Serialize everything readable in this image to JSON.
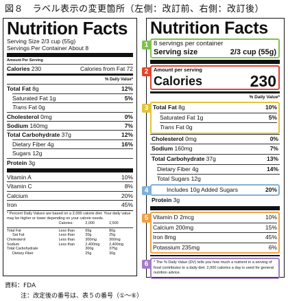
{
  "title": "図８　ラベル表示の変更箇所（左側：改訂前、右側：改訂後）",
  "old_label": {
    "heading": "Nutrition Facts",
    "serving_size": "Serving Size 2/3 cup (55g)",
    "servings": "Servings Per Container About 8",
    "amount_per": "Amount Per Serving",
    "calories_label": "Calories",
    "calories_value": "230",
    "calories_fat": "Calories from Fat 72",
    "dv_header": "% Daily Value*",
    "nutrients": [
      {
        "label": "Total Fat",
        "amount": "8g",
        "dv": "12%",
        "bold": true
      },
      {
        "label": "Saturated Fat",
        "amount": "1g",
        "dv": "5%"
      },
      {
        "label": "Trans",
        "amount": "Fat 0g",
        "dv": ""
      },
      {
        "label": "Cholesterol",
        "amount": "0mg",
        "dv": "0%",
        "bold": true
      },
      {
        "label": "Sodium",
        "amount": "160mg",
        "dv": "7%",
        "bold": true
      },
      {
        "label": "Total Carbohydrate",
        "amount": "37g",
        "dv": "12%",
        "bold": true
      },
      {
        "label": "Dietary Fiber",
        "amount": "4g",
        "dv": "16%"
      },
      {
        "label": "Sugars",
        "amount": "12g",
        "dv": ""
      },
      {
        "label": "Protein",
        "amount": "3g",
        "dv": "",
        "bold": true
      }
    ],
    "vitamins": [
      {
        "label": "Vitamin A",
        "dv": "10%"
      },
      {
        "label": "Vitamin C",
        "dv": "8%"
      },
      {
        "label": "Calcium",
        "dv": "20%"
      },
      {
        "label": "Iron",
        "dv": "45%"
      }
    ],
    "footnote": "* Percent Daily Values are based on a 2,000 calorie diet. Your daily value may be higher or lower depending on your calorie needs.",
    "ref_header": [
      "Calories:",
      "2,000",
      "2,500"
    ],
    "ref_rows": [
      [
        "Total Fat",
        "Less than",
        "65g",
        "80g"
      ],
      [
        "Sat Fat",
        "Less than",
        "20g",
        "25g"
      ],
      [
        "Cholesterol",
        "Less than",
        "300mg",
        "300mg"
      ],
      [
        "Sodium",
        "Less than",
        "2,400mg",
        "2,400mg"
      ],
      [
        "Total Carbohydrate",
        "",
        "300g",
        "375g"
      ],
      [
        "Dietary Fiber",
        "",
        "25g",
        "30g"
      ]
    ]
  },
  "new_label": {
    "heading": "Nutrition Facts",
    "servings": "8 servings per container",
    "serving_size_label": "Serving size",
    "serving_size_value": "2/3 cup (55g)",
    "amount_per": "Amount per serving",
    "calories_label": "Calories",
    "calories_value": "230",
    "dv_header": "% Daily Value*",
    "nutrients": [
      {
        "label": "Total Fat",
        "amount": "8g",
        "dv": "10%"
      },
      {
        "label": "Saturated Fat",
        "amount": "1g",
        "dv": "5%"
      },
      {
        "label": "Trans",
        "amount": "Fat 0g",
        "dv": ""
      },
      {
        "label": "Cholesterol",
        "amount": "0mg",
        "dv": "0%"
      },
      {
        "label": "Sodium",
        "amount": "160mg",
        "dv": "7%"
      },
      {
        "label": "Total Carbohydrate",
        "amount": "37g",
        "dv": "13%"
      },
      {
        "label": "Dietary Fiber",
        "amount": "4g",
        "dv": "14%"
      },
      {
        "label": "Total Sugars",
        "amount": "12g",
        "dv": ""
      },
      {
        "label": "Includes 10g Added Sugars",
        "amount": "",
        "dv": "20%"
      },
      {
        "label": "Protein",
        "amount": "3g",
        "dv": ""
      }
    ],
    "vitamins": [
      {
        "label": "Vitamin D",
        "amount": "2mcg",
        "dv": "10%"
      },
      {
        "label": "Calcium",
        "amount": "200mg",
        "dv": "15%"
      },
      {
        "label": "Iron",
        "amount": "8mg",
        "dv": "45%"
      },
      {
        "label": "Potassium",
        "amount": "235mg",
        "dv": "6%"
      }
    ],
    "footnote": "* The % Daily Value (DV) tells you how much a nutrient in a serving of food contributes to a daily diet. 2,000 calories a day is used for general nutrition advice.",
    "badges": [
      "1",
      "2",
      "3",
      "4",
      "5",
      "6"
    ],
    "colors": {
      "green": "#7fc24b",
      "red": "#e0442c",
      "yellow": "#e3c23b",
      "blue": "#7fb0dc",
      "orange": "#eea145",
      "purple": "#a37cc4"
    }
  },
  "source": "資料：FDA",
  "note": "注：改定後の番号は、表５の番号（①～⑥）"
}
